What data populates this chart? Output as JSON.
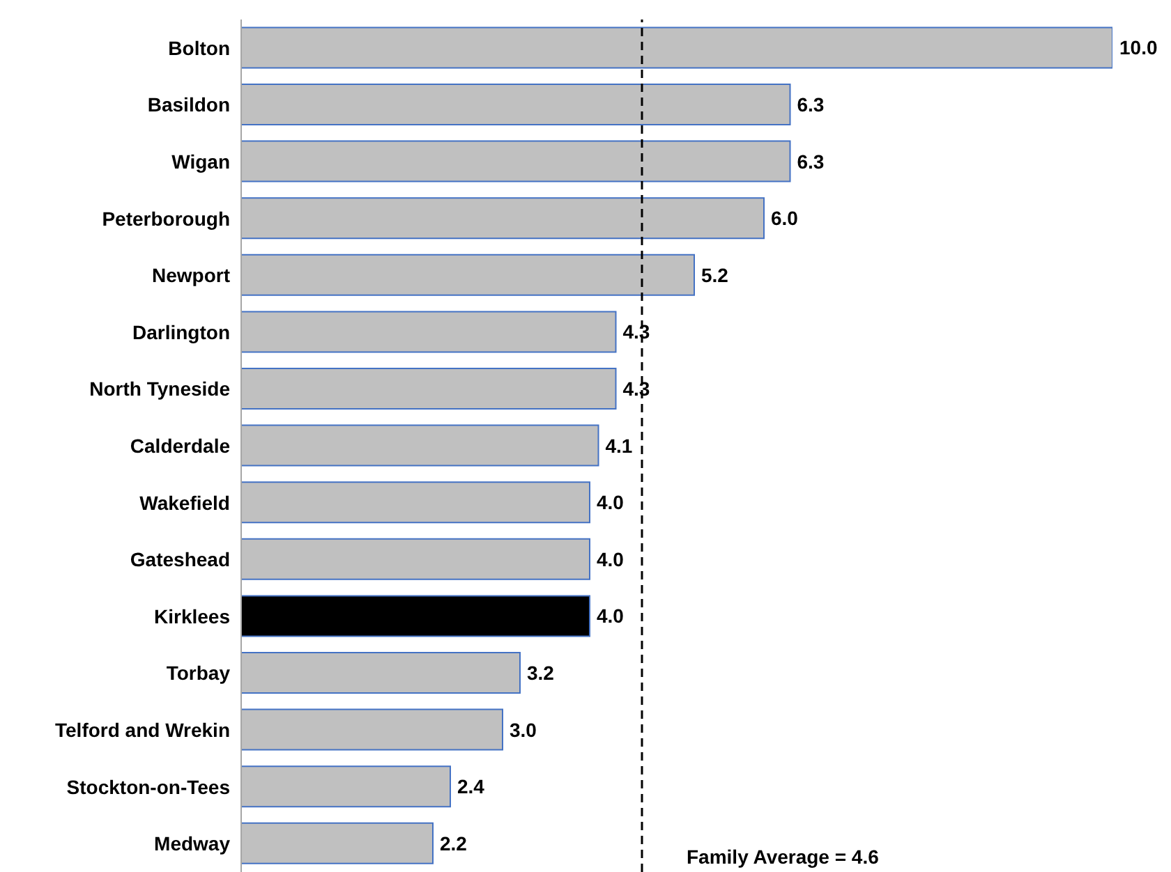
{
  "chart_data": {
    "type": "bar",
    "orientation": "horizontal",
    "categories": [
      "Bolton",
      "Basildon",
      "Wigan",
      "Peterborough",
      "Newport",
      "Darlington",
      "North Tyneside",
      "Calderdale",
      "Wakefield",
      "Gateshead",
      "Kirklees",
      "Torbay",
      "Telford and Wrekin",
      "Stockton-on-Tees",
      "Medway"
    ],
    "values": [
      10.0,
      6.3,
      6.3,
      6.0,
      5.2,
      4.3,
      4.3,
      4.1,
      4.0,
      4.0,
      4.0,
      3.2,
      3.0,
      2.4,
      2.2
    ],
    "colors": [
      "#c0c0c0",
      "#c0c0c0",
      "#c0c0c0",
      "#c0c0c0",
      "#c0c0c0",
      "#c0c0c0",
      "#c0c0c0",
      "#c0c0c0",
      "#c0c0c0",
      "#c0c0c0",
      "#000000",
      "#c0c0c0",
      "#c0c0c0",
      "#c0c0c0",
      "#c0c0c0"
    ],
    "value_labels": [
      "10.0",
      "6.3",
      "6.3",
      "6.0",
      "5.2",
      "4.3",
      "4.3",
      "4.1",
      "4.0",
      "4.0",
      "4.0",
      "3.2",
      "3.0",
      "2.4",
      "2.2"
    ],
    "tick_labels": "y",
    "grid": false,
    "legend": false,
    "ref_lines": [
      {
        "axis": "x",
        "value": 4.6,
        "label": "Family Average = 4.6",
        "color": "#000000",
        "line_style": "dashed"
      }
    ]
  }
}
